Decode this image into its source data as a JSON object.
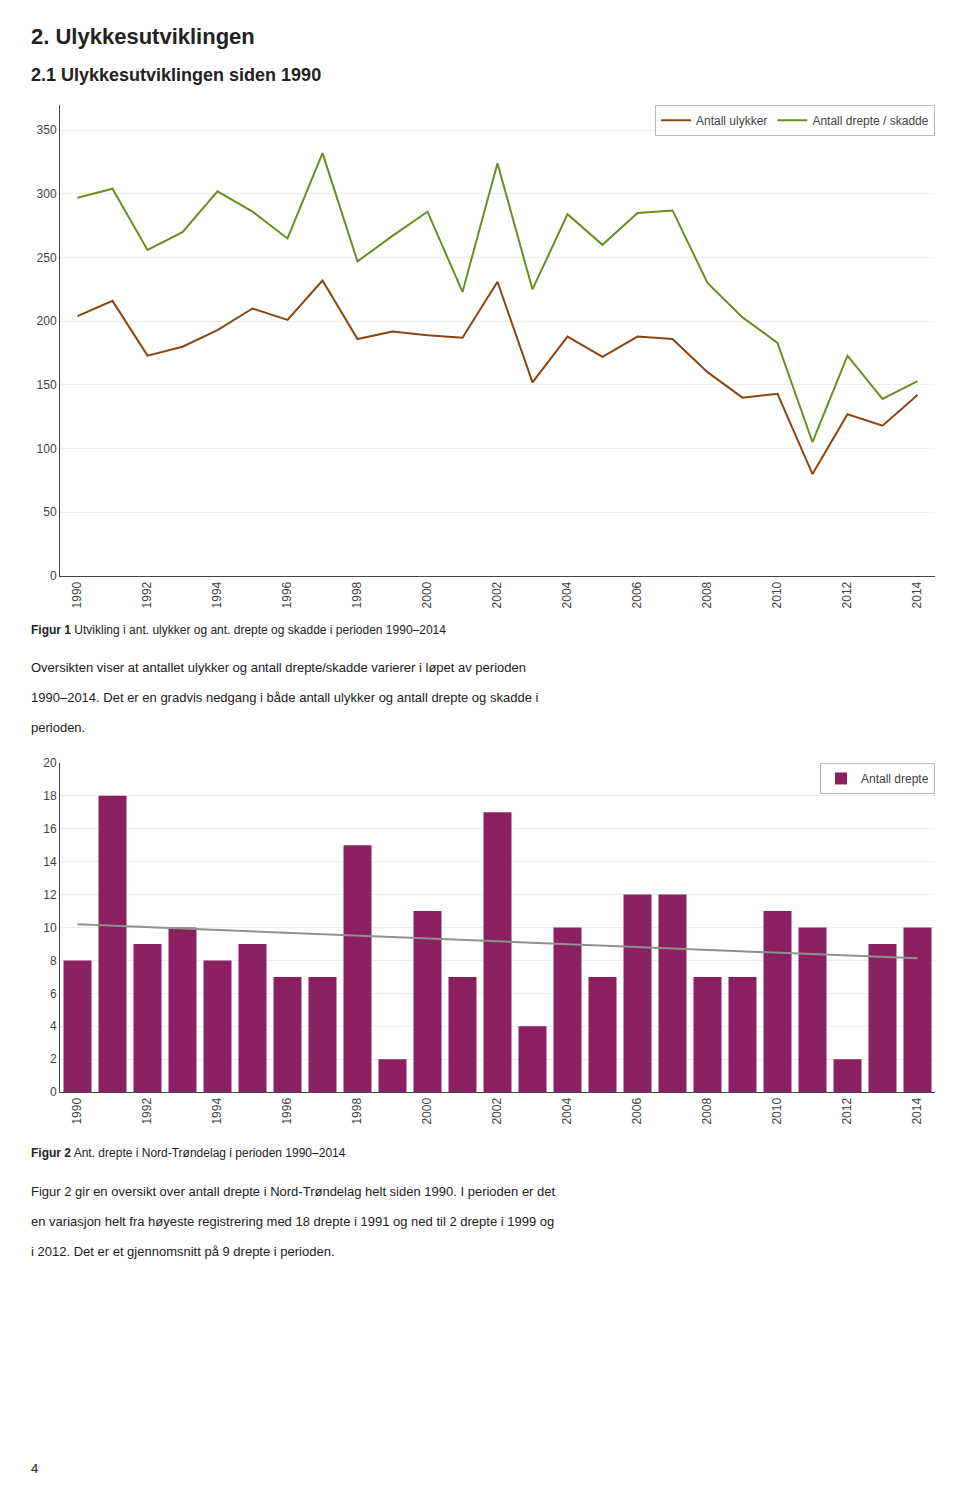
{
  "title": "2. Ulykkesutviklingen",
  "subtitle": "2.1 Ulykkesutviklingen siden 1990",
  "annotations": [
    "4"
  ],
  "chart_data": [
    {
      "type": "line",
      "x": [
        1990,
        1991,
        1992,
        1993,
        1994,
        1995,
        1996,
        1997,
        1998,
        1999,
        2000,
        2001,
        2002,
        2003,
        2004,
        2005,
        2006,
        2007,
        2008,
        2009,
        2010,
        2011,
        2012,
        2013,
        2014
      ],
      "series": [
        {
          "name": "Antall ulykker",
          "color": "#8B4513",
          "values": [
            204,
            216,
            173,
            180,
            193,
            210,
            201,
            232,
            186,
            192,
            189,
            187,
            231,
            152,
            188,
            172,
            188,
            186,
            160,
            140,
            143,
            80,
            127,
            118,
            142
          ]
        },
        {
          "name": "Antall drepte / skadde",
          "color": "#6B8E23",
          "values": [
            297,
            304,
            256,
            270,
            302,
            286,
            265,
            332,
            247,
            267,
            286,
            223,
            324,
            225,
            284,
            260,
            285,
            287,
            230,
            203,
            183,
            105,
            173,
            139,
            153
          ]
        }
      ],
      "xlim": [
        1989.5,
        2014.5
      ],
      "xticks": [
        1990,
        1992,
        1994,
        1996,
        1998,
        2000,
        2002,
        2004,
        2006,
        2008,
        2010,
        2012,
        2014
      ],
      "ylim": [
        0,
        370
      ],
      "yticks": [
        0,
        50,
        100,
        150,
        200,
        250,
        300,
        350
      ],
      "grid": true,
      "legend": "upper right",
      "annotations": [
        "Figur 1",
        "Utvikling i ant. ulykker og ant. drepte og skadde i perioden 1990–2014",
        "Oversikten viser at antallet ulykker og antall drepte/skadde varierer i løpet av perioden",
        "1990–2014. Det er en gradvis nedgang i både antall ulykker og antall drepte og skadde i",
        "perioden."
      ]
    },
    {
      "type": "bar",
      "x": [
        1990,
        1991,
        1992,
        1993,
        1994,
        1995,
        1996,
        1997,
        1998,
        1999,
        2000,
        2001,
        2002,
        2003,
        2004,
        2005,
        2006,
        2007,
        2008,
        2009,
        2010,
        2011,
        2012,
        2013,
        2014
      ],
      "series": [
        {
          "name": "Antall drepte",
          "type": "bar",
          "color": "#8B2060",
          "values": [
            8,
            18,
            9,
            10,
            8,
            9,
            7,
            7,
            15,
            2,
            11,
            7,
            17,
            4,
            10,
            7,
            12,
            12,
            7,
            7,
            11,
            10,
            2,
            9,
            10
          ]
        },
        {
          "type": "line",
          "color": "#909090",
          "values": [
            10.1938,
            10.1077,
            10.0215,
            9.9354,
            9.8492,
            9.7631,
            9.6769,
            9.5908,
            9.5046,
            9.4185,
            9.3323,
            9.2462,
            9.16,
            9.0738,
            8.9877,
            8.9015,
            8.8154,
            8.7292,
            8.6431,
            8.5569,
            8.4708,
            8.3846,
            8.2985,
            8.2123,
            8.1262
          ]
        }
      ],
      "xlim": [
        1989.5,
        2014.5
      ],
      "xticks": [
        1990,
        1992,
        1994,
        1996,
        1998,
        2000,
        2002,
        2004,
        2006,
        2008,
        2010,
        2012,
        2014
      ],
      "ylim": [
        0,
        20
      ],
      "yticks": [
        0,
        2,
        4,
        6,
        8,
        10,
        12,
        14,
        16,
        18,
        20
      ],
      "grid": true,
      "legend": "upper right",
      "annotations": [
        "Figur 2",
        "Ant. drepte i Nord-Trøndelag i perioden 1990–2014",
        "Figur 2 gir en oversikt over antall drepte i Nord-Trøndelag helt siden 1990. I perioden er det",
        "en variasjon helt fra høyeste registrering med 18 drepte i 1991 og ned til 2 drepte i 1999 og",
        "i 2012. Det er et gjennomsnitt på 9 drepte i perioden."
      ]
    }
  ]
}
